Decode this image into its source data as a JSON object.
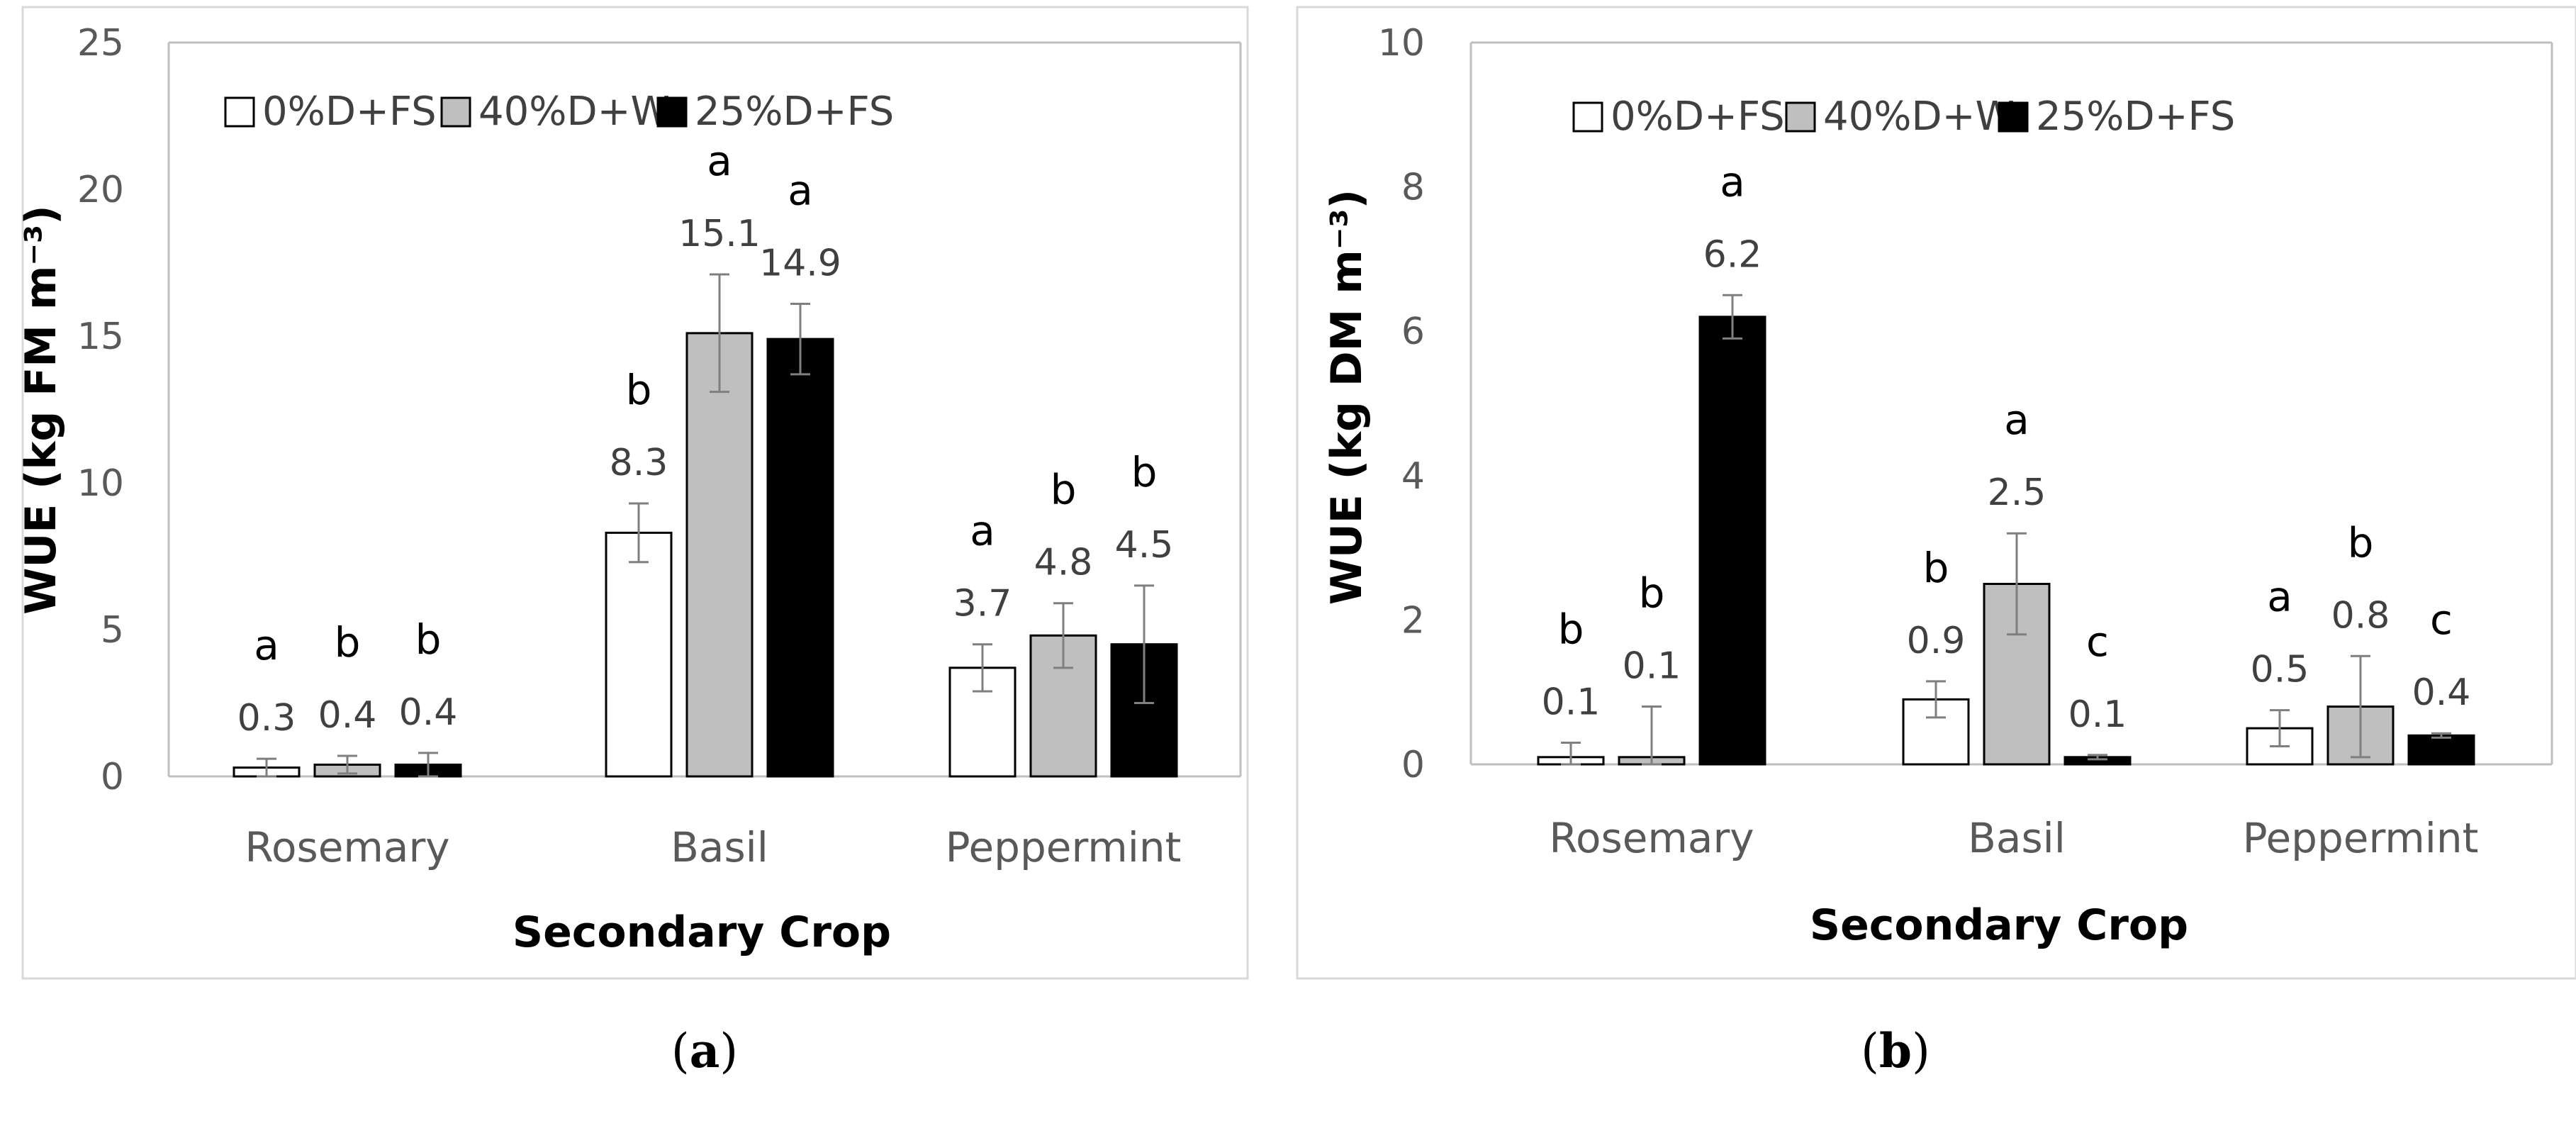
{
  "chart_data": [
    {
      "type": "bar",
      "panel_label": "(a)",
      "panel_letter": "a",
      "categories": [
        "Rosemary",
        "Basil",
        "Peppermint"
      ],
      "xlabel": "Secondary Crop",
      "ylabel": "WUE (kg FM m⁻³)",
      "ylim": [
        0,
        25
      ],
      "yticks": [
        0,
        5,
        10,
        15,
        20,
        25
      ],
      "legend_position": "top-left",
      "series": [
        {
          "name": "0%D+FS",
          "color": "#ffffff",
          "values": [
            0.3,
            8.3,
            3.7
          ],
          "errors": [
            0.3,
            1.0,
            0.8
          ],
          "letters": [
            "a",
            "b",
            "a"
          ],
          "labels": [
            "0.3",
            "8.3",
            "3.7"
          ]
        },
        {
          "name": "40%D+W",
          "color": "#bfbfbf",
          "values": [
            0.4,
            15.1,
            4.8
          ],
          "errors": [
            0.3,
            2.0,
            1.1
          ],
          "letters": [
            "b",
            "a",
            "b"
          ],
          "labels": [
            "0.4",
            "15.1",
            "4.8"
          ]
        },
        {
          "name": "25%D+FS",
          "color": "#000000",
          "values": [
            0.4,
            14.9,
            4.5
          ],
          "errors": [
            0.4,
            1.2,
            2.0
          ],
          "letters": [
            "b",
            "a",
            "b"
          ],
          "labels": [
            "0.4",
            "14.9",
            "4.5"
          ]
        }
      ]
    },
    {
      "type": "bar",
      "panel_label": "(b)",
      "panel_letter": "b",
      "categories": [
        "Rosemary",
        "Basil",
        "Peppermint"
      ],
      "xlabel": "Secondary Crop",
      "ylabel": "WUE (kg DM m⁻³)",
      "ylim": [
        0,
        10
      ],
      "yticks": [
        0,
        2,
        4,
        6,
        8,
        10
      ],
      "legend_position": "top-left",
      "series": [
        {
          "name": "0%D+FS",
          "color": "#ffffff",
          "values": [
            0.1,
            0.9,
            0.5
          ],
          "errors": [
            0.2,
            0.25,
            0.25
          ],
          "letters": [
            "b",
            "b",
            "a"
          ],
          "labels": [
            "0.1",
            "0.9",
            "0.5"
          ]
        },
        {
          "name": "40%D+W",
          "color": "#bfbfbf",
          "values": [
            0.1,
            2.5,
            0.8
          ],
          "errors": [
            0.7,
            0.7,
            0.7
          ],
          "letters": [
            "b",
            "a",
            "b"
          ],
          "labels": [
            "0.1",
            "2.5",
            "0.8"
          ]
        },
        {
          "name": "25%D+FS",
          "color": "#000000",
          "values": [
            6.2,
            0.1,
            0.4
          ],
          "errors": [
            0.3,
            0.03,
            0.03
          ],
          "letters": [
            "a",
            "c",
            "c"
          ],
          "labels": [
            "6.2",
            "0.1",
            "0.4"
          ]
        }
      ]
    }
  ]
}
